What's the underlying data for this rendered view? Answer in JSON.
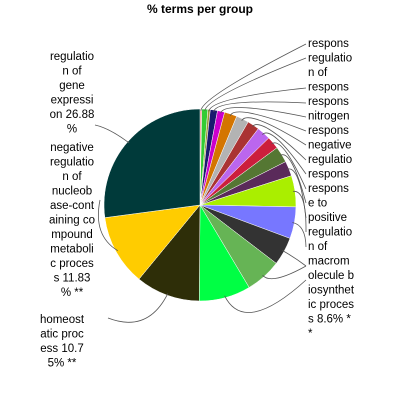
{
  "chart_data": {
    "type": "pie",
    "title": "% terms per group",
    "start_angle_deg": 0,
    "direction": "clockwise",
    "slices": [
      {
        "value": 0.3,
        "color": "#f08080",
        "label": ""
      },
      {
        "value": 1.0,
        "color": "#33cc33",
        "label": ""
      },
      {
        "value": 0.4,
        "color": "#999933",
        "label": ""
      },
      {
        "value": 1.2,
        "color": "#1a1a6e",
        "label": ""
      },
      {
        "value": 1.2,
        "color": "#cc00cc",
        "label": ""
      },
      {
        "value": 2.1,
        "color": "#d47500",
        "label": ""
      },
      {
        "value": 2.1,
        "color": "#b3b3b3",
        "label": ""
      },
      {
        "value": 2.0,
        "color": "#aa3333",
        "label": ""
      },
      {
        "value": 2.3,
        "color": "#bb66ee",
        "label": ""
      },
      {
        "value": 2.1,
        "color": "#cc1e3c",
        "label": ""
      },
      {
        "value": 2.7,
        "color": "#557733",
        "label": ""
      },
      {
        "value": 2.5,
        "color": "#5a2a5a",
        "label": ""
      },
      {
        "value": 5.2,
        "color": "#aaee00",
        "label": ""
      },
      {
        "value": 5.3,
        "color": "#7777ff",
        "label": ""
      },
      {
        "value": 4.7,
        "color": "#333333",
        "label": ""
      },
      {
        "value": 6.0,
        "color": "#66b455",
        "label": ""
      },
      {
        "value": 8.6,
        "color": "#00ff44",
        "label": "regulation of macromolecule biosynthetic process 8.6% **"
      },
      {
        "value": 10.75,
        "color": "#2e2e08",
        "label": "homeostatic process 10.75% **"
      },
      {
        "value": 11.83,
        "color": "#ffcc00",
        "label": "negative regulation of nucleobase-containing compound metabolic process 11.83% **"
      },
      {
        "value": 26.88,
        "color": "#003a3a",
        "label": "regulation of gene expression 26.88%"
      }
    ],
    "label_lines": {
      "right": [
        "respons",
        "regulatio",
        "n of",
        "respons",
        "respons",
        "nitrogen",
        "respons",
        "negative",
        "regulatio",
        "respons",
        "respons",
        "e to",
        "positive",
        "regulatio",
        "n of",
        "macrom",
        "olecule b",
        "iosynthet",
        "ic proces",
        "s 8.6% *",
        "*"
      ],
      "left_gene": [
        "regulatio",
        "n of",
        "gene",
        "expressi",
        "on 26.88",
        "%"
      ],
      "left_nucleo": [
        "negative",
        "regulatio",
        "n of",
        "nucleob",
        "ase-cont",
        "aining co",
        "mpound",
        "metaboli",
        "c proces",
        "s 11.83",
        "% **"
      ],
      "left_homeo": [
        "homeost",
        "atic proc",
        "ess 10.7",
        "5% **"
      ]
    }
  }
}
